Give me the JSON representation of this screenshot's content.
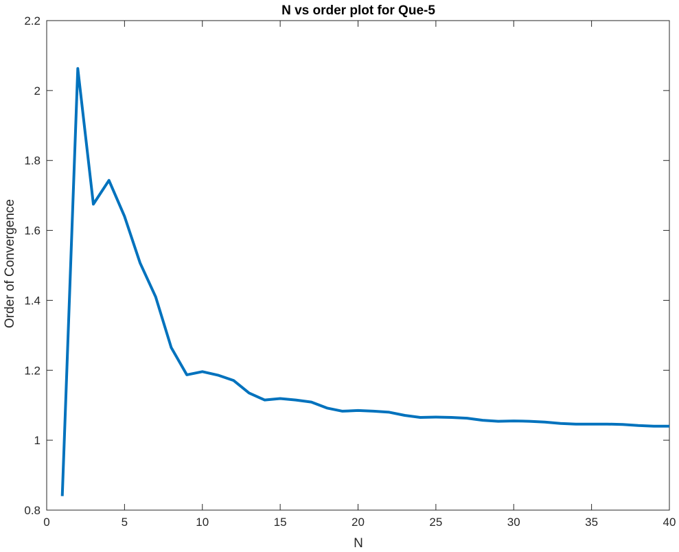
{
  "chart_data": {
    "type": "line",
    "title": "N vs order plot for Que-5",
    "xlabel": "N",
    "ylabel": "Order of Convergence",
    "xlim": [
      0,
      40
    ],
    "ylim": [
      0.8,
      2.2
    ],
    "xticks": [
      0,
      5,
      10,
      15,
      20,
      25,
      30,
      35,
      40
    ],
    "yticks": [
      0.8,
      1,
      1.2,
      1.4,
      1.6,
      1.8,
      2,
      2.2
    ],
    "xtick_labels": [
      "0",
      "5",
      "10",
      "15",
      "20",
      "25",
      "30",
      "35",
      "40"
    ],
    "ytick_labels": [
      "0.8",
      "1",
      "1.2",
      "1.4",
      "1.6",
      "1.8",
      "2",
      "2.2"
    ],
    "grid": false,
    "line_color": "#0072BD",
    "series": [
      {
        "x": [
          1,
          2,
          3,
          4,
          5,
          6,
          7,
          8,
          9,
          10,
          11,
          12,
          13,
          14,
          15,
          16,
          17,
          18,
          19,
          20,
          21,
          22,
          23,
          24,
          25,
          26,
          27,
          28,
          29,
          30,
          31,
          32,
          33,
          34,
          35,
          36,
          37,
          38,
          39,
          40
        ],
        "values": [
          0.84,
          2.063,
          1.675,
          1.743,
          1.64,
          1.507,
          1.41,
          1.265,
          1.187,
          1.196,
          1.186,
          1.171,
          1.135,
          1.115,
          1.119,
          1.115,
          1.109,
          1.092,
          1.083,
          1.085,
          1.083,
          1.08,
          1.071,
          1.065,
          1.066,
          1.065,
          1.063,
          1.057,
          1.054,
          1.055,
          1.054,
          1.052,
          1.048,
          1.046,
          1.046,
          1.046,
          1.045,
          1.042,
          1.04,
          1.04
        ]
      }
    ]
  }
}
